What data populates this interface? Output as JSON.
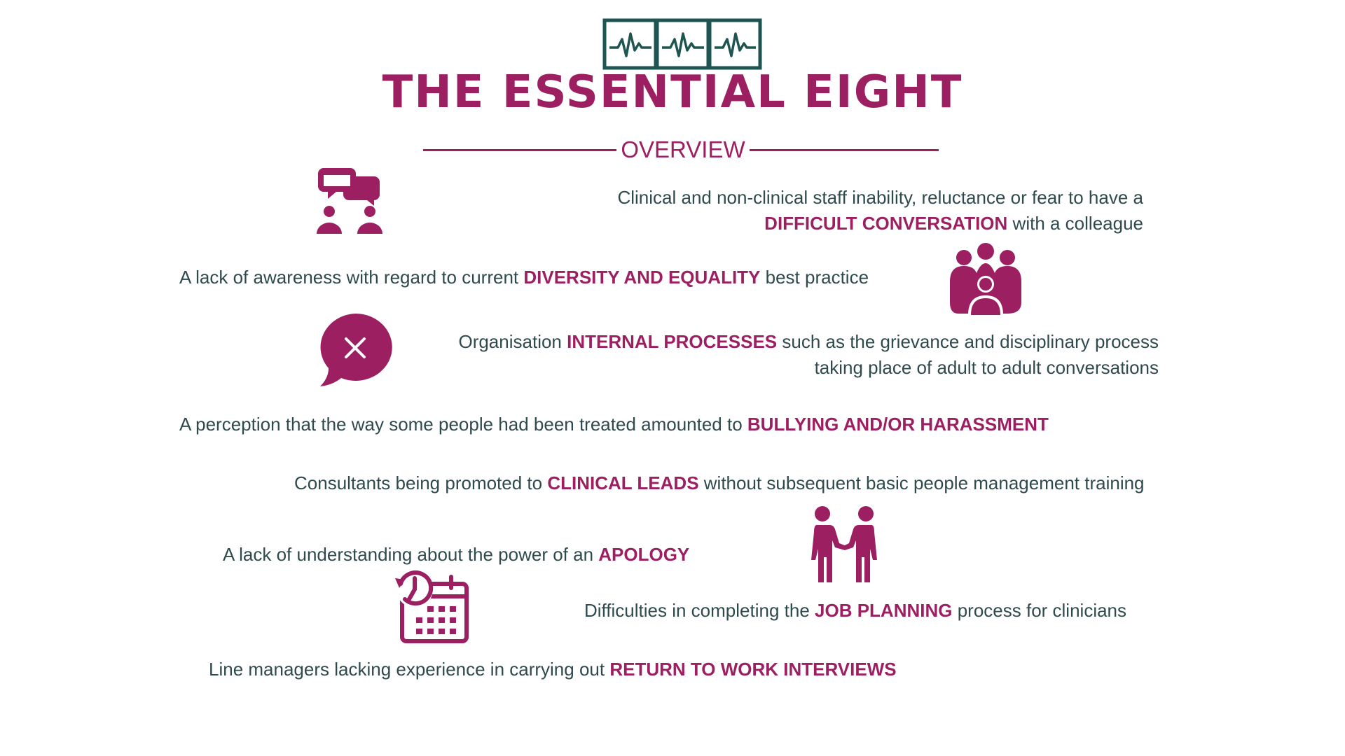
{
  "title": "THE ESSENTIAL EIGHT",
  "subtitle": "OVERVIEW",
  "colors": {
    "accent": "#9c1f62",
    "text": "#2f4a4d",
    "logo": "#1e5550"
  },
  "items": [
    {
      "line1": "Clinical and non-clinical staff inability, reluctance or fear to have a",
      "highlight": "DIFFICULT CONVERSATION",
      "after": " with a colleague",
      "icon": "conversation-people-icon"
    },
    {
      "before": "A lack of awareness with regard to current ",
      "highlight": "DIVERSITY AND EQUALITY",
      "after": " best practice",
      "icon": "group-people-icon"
    },
    {
      "before": "Organisation ",
      "highlight": "INTERNAL PROCESSES",
      "after": " such as the grievance and disciplinary process",
      "line2": "taking place of adult to adult conversations",
      "icon": "speech-bubble-x-icon"
    },
    {
      "before": "A perception that the way some people had been treated amounted to ",
      "highlight": "BULLYING AND/OR HARASSMENT",
      "after": ""
    },
    {
      "before": "Consultants being promoted to ",
      "highlight": "CLINICAL LEADS",
      "after": " without subsequent basic people management training"
    },
    {
      "before": "A lack of understanding about the power of an ",
      "highlight": "APOLOGY",
      "after": "",
      "icon": "handshake-people-icon"
    },
    {
      "before": "Difficulties in completing the ",
      "highlight": "JOB PLANNING",
      "after": " process for clinicians",
      "icon": "calendar-clock-icon"
    },
    {
      "before": "Line managers lacking experience in carrying out ",
      "highlight": "RETURN TO WORK INTERVIEWS",
      "after": ""
    }
  ]
}
